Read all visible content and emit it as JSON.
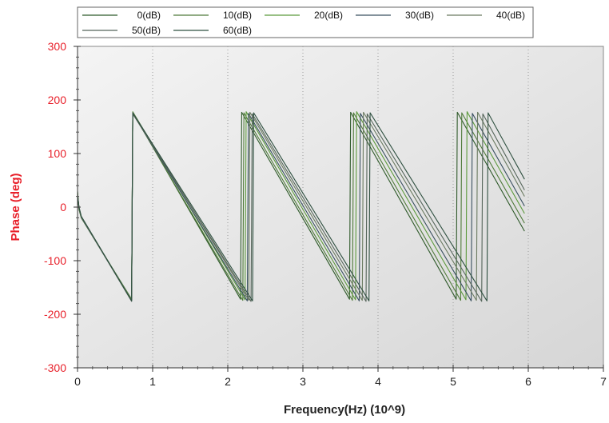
{
  "chart_data": {
    "type": "line",
    "xlabel": "Frequency(Hz) (10^9)",
    "ylabel": "Phase (deg)",
    "xlim": [
      0,
      7
    ],
    "ylim": [
      -300,
      300
    ],
    "xticks": [
      "0",
      "1",
      "2",
      "3",
      "4",
      "5",
      "6",
      "7"
    ],
    "yticks": [
      "300",
      "200",
      "100",
      "0",
      "-100",
      "-200",
      "-300"
    ],
    "grid": "vertical-dotted",
    "legend_placement": "top",
    "colors": {
      "plot_bg_light": "#f4f4f4",
      "plot_bg_dark": "#d6d6d6",
      "y_axis_text": "#e8202a",
      "x_axis_text": "#222222",
      "grid": "#9a9a9a"
    },
    "series": [
      {
        "name": "0(dB)",
        "color": "#2f5a2a",
        "x": [
          0,
          0.02,
          0.05,
          0.72,
          0.735,
          2.17,
          2.185,
          3.62,
          3.635,
          5.04,
          5.055,
          5.95
        ],
        "y": [
          30,
          -5,
          -20,
          -172,
          177,
          -172,
          177,
          -172,
          177,
          -172,
          177,
          -45
        ]
      },
      {
        "name": "10(dB)",
        "color": "#4f7a3a",
        "x": [
          0,
          0.02,
          0.05,
          0.72,
          0.735,
          2.2,
          2.215,
          3.66,
          3.675,
          5.1,
          5.115,
          5.95
        ],
        "y": [
          28,
          -4,
          -20,
          -174,
          176,
          -174,
          176,
          -174,
          176,
          -174,
          176,
          -30
        ]
      },
      {
        "name": "20(dB)",
        "color": "#5c9a3c",
        "x": [
          0,
          0.02,
          0.05,
          0.72,
          0.735,
          2.23,
          2.245,
          3.7,
          3.715,
          5.17,
          5.185,
          5.95
        ],
        "y": [
          26,
          -3,
          -19,
          -173,
          178,
          -173,
          178,
          -173,
          178,
          -173,
          178,
          -12
        ]
      },
      {
        "name": "30(dB)",
        "color": "#3a5060",
        "x": [
          0,
          0.02,
          0.05,
          0.72,
          0.735,
          2.26,
          2.275,
          3.75,
          3.765,
          5.24,
          5.255,
          5.95
        ],
        "y": [
          25,
          -2,
          -19,
          -175,
          175,
          -175,
          175,
          -175,
          175,
          -175,
          175,
          2
        ]
      },
      {
        "name": "40(dB)",
        "color": "#6a7a60",
        "x": [
          0,
          0.02,
          0.05,
          0.72,
          0.735,
          2.28,
          2.295,
          3.79,
          3.805,
          5.31,
          5.325,
          5.95
        ],
        "y": [
          24,
          -2,
          -18,
          -174,
          177,
          -174,
          177,
          -174,
          177,
          -174,
          177,
          20
        ]
      },
      {
        "name": "50(dB)",
        "color": "#55655a",
        "x": [
          0,
          0.02,
          0.05,
          0.72,
          0.735,
          2.31,
          2.325,
          3.84,
          3.855,
          5.38,
          5.395,
          5.95
        ],
        "y": [
          22,
          -1,
          -18,
          -176,
          174,
          -176,
          174,
          -176,
          174,
          -176,
          174,
          32
        ]
      },
      {
        "name": "60(dB)",
        "color": "#2f5040",
        "x": [
          0,
          0.02,
          0.05,
          0.72,
          0.735,
          2.33,
          2.345,
          3.88,
          3.895,
          5.45,
          5.465,
          5.95
        ],
        "y": [
          20,
          0,
          -17,
          -175,
          176,
          -175,
          176,
          -175,
          176,
          -175,
          176,
          52
        ]
      }
    ]
  }
}
